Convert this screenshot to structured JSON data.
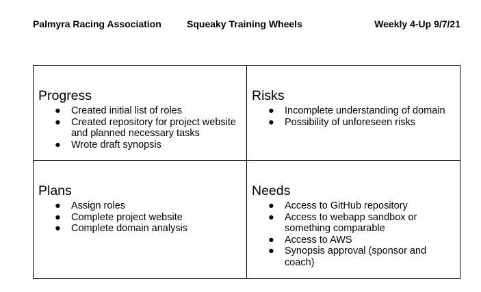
{
  "header": {
    "organization": "Palmyra Racing Association",
    "team": "Squeaky Training Wheels",
    "report": "Weekly 4-Up 9/7/21"
  },
  "bullet_glyph": "●",
  "quadrants": {
    "progress": {
      "title": "Progress",
      "items": [
        "Created initial list of roles",
        "Created repository for project website and planned necessary tasks",
        "Wrote draft synopsis"
      ]
    },
    "risks": {
      "title": "Risks",
      "items": [
        "Incomplete understanding of domain",
        "Possibility of unforeseen risks"
      ]
    },
    "plans": {
      "title": "Plans",
      "items": [
        "Assign roles",
        "Complete project website",
        "Complete domain analysis"
      ]
    },
    "needs": {
      "title": "Needs",
      "items": [
        "Access to GitHub repository",
        "Access to webapp sandbox or something comparable",
        "Access to AWS",
        "Synopsis approval (sponsor and coach)"
      ]
    }
  }
}
